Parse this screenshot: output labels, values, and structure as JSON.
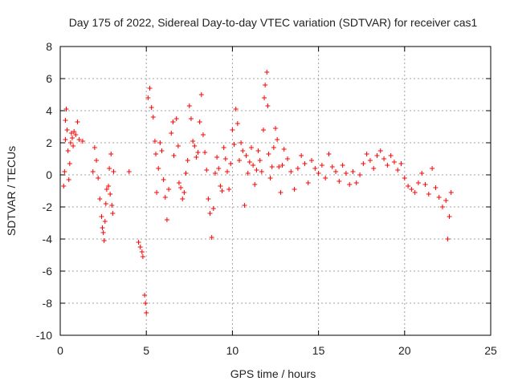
{
  "chart_data": {
    "type": "scatter",
    "title": "Day 175 of 2022, Sidereal Day-to-day VTEC variation (SDTVAR) for receiver cas1",
    "xlabel": "GPS time / hours",
    "ylabel": "SDTVAR / TECUs",
    "xlim": [
      0,
      25
    ],
    "ylim": [
      -10,
      8
    ],
    "xticks": [
      0,
      5,
      10,
      15,
      20,
      25
    ],
    "yticks": [
      -10,
      -8,
      -6,
      -4,
      -2,
      0,
      2,
      4,
      6,
      8
    ],
    "xtick_labels": [
      "0",
      "5",
      "10",
      "15",
      "20",
      "25"
    ],
    "ytick_labels": [
      "-10",
      "-8",
      "-6",
      "-4",
      "-2",
      "0",
      "2",
      "4",
      "6",
      "8"
    ],
    "grid": true,
    "marker": "+",
    "color": "#ff0000",
    "series": [
      {
        "name": "cas1",
        "points": [
          [
            0.2,
            -0.7
          ],
          [
            0.25,
            0.2
          ],
          [
            0.3,
            2.2
          ],
          [
            0.3,
            3.4
          ],
          [
            0.35,
            4.1
          ],
          [
            0.4,
            2.8
          ],
          [
            0.45,
            1.5
          ],
          [
            0.5,
            -0.3
          ],
          [
            0.55,
            0.7
          ],
          [
            0.6,
            2.0
          ],
          [
            0.65,
            2.6
          ],
          [
            0.7,
            2.3
          ],
          [
            0.75,
            1.8
          ],
          [
            0.8,
            2.7
          ],
          [
            0.9,
            2.5
          ],
          [
            1.0,
            3.3
          ],
          [
            1.1,
            2.2
          ],
          [
            1.3,
            2.1
          ],
          [
            1.9,
            0.2
          ],
          [
            2.0,
            1.7
          ],
          [
            2.1,
            0.9
          ],
          [
            2.2,
            -0.2
          ],
          [
            2.3,
            -1.5
          ],
          [
            2.4,
            -2.6
          ],
          [
            2.45,
            -3.3
          ],
          [
            2.5,
            -3.6
          ],
          [
            2.55,
            -4.1
          ],
          [
            2.6,
            -2.9
          ],
          [
            2.65,
            -1.8
          ],
          [
            2.7,
            -0.9
          ],
          [
            2.8,
            -0.7
          ],
          [
            2.85,
            0.4
          ],
          [
            2.9,
            -1.2
          ],
          [
            2.95,
            1.3
          ],
          [
            3.0,
            -1.9
          ],
          [
            3.05,
            -2.4
          ],
          [
            3.1,
            0.2
          ],
          [
            4.0,
            0.2
          ],
          [
            4.55,
            -4.2
          ],
          [
            4.65,
            -4.5
          ],
          [
            4.75,
            -4.8
          ],
          [
            4.8,
            -5.1
          ],
          [
            4.9,
            -7.5
          ],
          [
            4.95,
            -8.0
          ],
          [
            5.0,
            -8.6
          ],
          [
            5.1,
            4.8
          ],
          [
            5.2,
            5.4
          ],
          [
            5.3,
            4.2
          ],
          [
            5.4,
            3.6
          ],
          [
            5.5,
            2.1
          ],
          [
            5.55,
            1.3
          ],
          [
            5.6,
            -1.1
          ],
          [
            5.7,
            0.4
          ],
          [
            5.8,
            2.0
          ],
          [
            5.9,
            1.5
          ],
          [
            6.0,
            -0.3
          ],
          [
            6.1,
            -1.4
          ],
          [
            6.2,
            -2.8
          ],
          [
            6.3,
            -0.9
          ],
          [
            6.45,
            2.6
          ],
          [
            6.55,
            3.3
          ],
          [
            6.6,
            1.2
          ],
          [
            6.75,
            3.5
          ],
          [
            6.85,
            1.8
          ],
          [
            6.9,
            -0.5
          ],
          [
            7.0,
            -0.8
          ],
          [
            7.1,
            -1.5
          ],
          [
            7.2,
            -1.1
          ],
          [
            7.3,
            0.1
          ],
          [
            7.4,
            0.9
          ],
          [
            7.5,
            4.3
          ],
          [
            7.6,
            3.5
          ],
          [
            7.7,
            2.1
          ],
          [
            7.8,
            1.8
          ],
          [
            7.9,
            1.1
          ],
          [
            8.0,
            1.4
          ],
          [
            8.1,
            3.3
          ],
          [
            8.2,
            5.0
          ],
          [
            8.3,
            2.5
          ],
          [
            8.4,
            1.4
          ],
          [
            8.5,
            0.3
          ],
          [
            8.6,
            -1.5
          ],
          [
            8.7,
            -2.4
          ],
          [
            8.8,
            -3.9
          ],
          [
            8.9,
            -2.1
          ],
          [
            9.0,
            0.1
          ],
          [
            9.1,
            1.1
          ],
          [
            9.2,
            0.4
          ],
          [
            9.3,
            -0.7
          ],
          [
            9.4,
            -1.0
          ],
          [
            9.5,
            1.7
          ],
          [
            9.6,
            1.0
          ],
          [
            9.7,
            0.2
          ],
          [
            9.8,
            -0.9
          ],
          [
            9.9,
            0.7
          ],
          [
            10.0,
            2.8
          ],
          [
            10.1,
            1.9
          ],
          [
            10.2,
            4.1
          ],
          [
            10.3,
            3.2
          ],
          [
            10.4,
            0.9
          ],
          [
            10.5,
            2.0
          ],
          [
            10.6,
            1.5
          ],
          [
            10.7,
            -1.9
          ],
          [
            10.8,
            1.2
          ],
          [
            10.9,
            0.1
          ],
          [
            11.0,
            0.8
          ],
          [
            11.1,
            1.7
          ],
          [
            11.2,
            0.6
          ],
          [
            11.3,
            -0.6
          ],
          [
            11.4,
            0.3
          ],
          [
            11.5,
            1.5
          ],
          [
            11.6,
            0.9
          ],
          [
            11.7,
            0.2
          ],
          [
            11.8,
            2.8
          ],
          [
            11.85,
            4.8
          ],
          [
            11.9,
            5.6
          ],
          [
            12.0,
            6.4
          ],
          [
            12.05,
            4.3
          ],
          [
            12.1,
            1.3
          ],
          [
            12.2,
            -0.2
          ],
          [
            12.3,
            0.5
          ],
          [
            12.4,
            1.7
          ],
          [
            12.5,
            2.9
          ],
          [
            12.6,
            2.2
          ],
          [
            12.7,
            0.5
          ],
          [
            12.8,
            -1.1
          ],
          [
            12.9,
            0.6
          ],
          [
            13.0,
            1.6
          ],
          [
            13.2,
            1.0
          ],
          [
            13.4,
            0.2
          ],
          [
            13.6,
            -0.9
          ],
          [
            13.8,
            0.4
          ],
          [
            14.0,
            1.2
          ],
          [
            14.2,
            0.7
          ],
          [
            14.4,
            -0.5
          ],
          [
            14.6,
            0.9
          ],
          [
            14.8,
            0.4
          ],
          [
            15.0,
            0.1
          ],
          [
            15.2,
            0.6
          ],
          [
            15.4,
            -0.2
          ],
          [
            15.6,
            1.3
          ],
          [
            15.8,
            0.5
          ],
          [
            16.0,
            0.2
          ],
          [
            16.2,
            -0.4
          ],
          [
            16.4,
            0.6
          ],
          [
            16.6,
            0.1
          ],
          [
            16.8,
            -0.6
          ],
          [
            17.0,
            0.2
          ],
          [
            17.2,
            -0.5
          ],
          [
            17.4,
            0.0
          ],
          [
            17.6,
            0.7
          ],
          [
            17.8,
            1.3
          ],
          [
            18.0,
            0.9
          ],
          [
            18.2,
            0.4
          ],
          [
            18.4,
            1.2
          ],
          [
            18.6,
            1.5
          ],
          [
            18.8,
            1.0
          ],
          [
            19.0,
            0.6
          ],
          [
            19.2,
            1.2
          ],
          [
            19.4,
            0.8
          ],
          [
            19.6,
            0.3
          ],
          [
            19.8,
            0.7
          ],
          [
            20.0,
            -0.2
          ],
          [
            20.2,
            -0.7
          ],
          [
            20.4,
            -0.9
          ],
          [
            20.6,
            -1.1
          ],
          [
            20.8,
            -0.5
          ],
          [
            21.0,
            0.1
          ],
          [
            21.2,
            -0.6
          ],
          [
            21.4,
            -1.2
          ],
          [
            21.6,
            0.4
          ],
          [
            21.8,
            -0.8
          ],
          [
            22.0,
            -1.4
          ],
          [
            22.2,
            -2.0
          ],
          [
            22.4,
            -1.6
          ],
          [
            22.5,
            -4.0
          ],
          [
            22.6,
            -2.6
          ],
          [
            22.7,
            -1.1
          ]
        ]
      }
    ]
  }
}
